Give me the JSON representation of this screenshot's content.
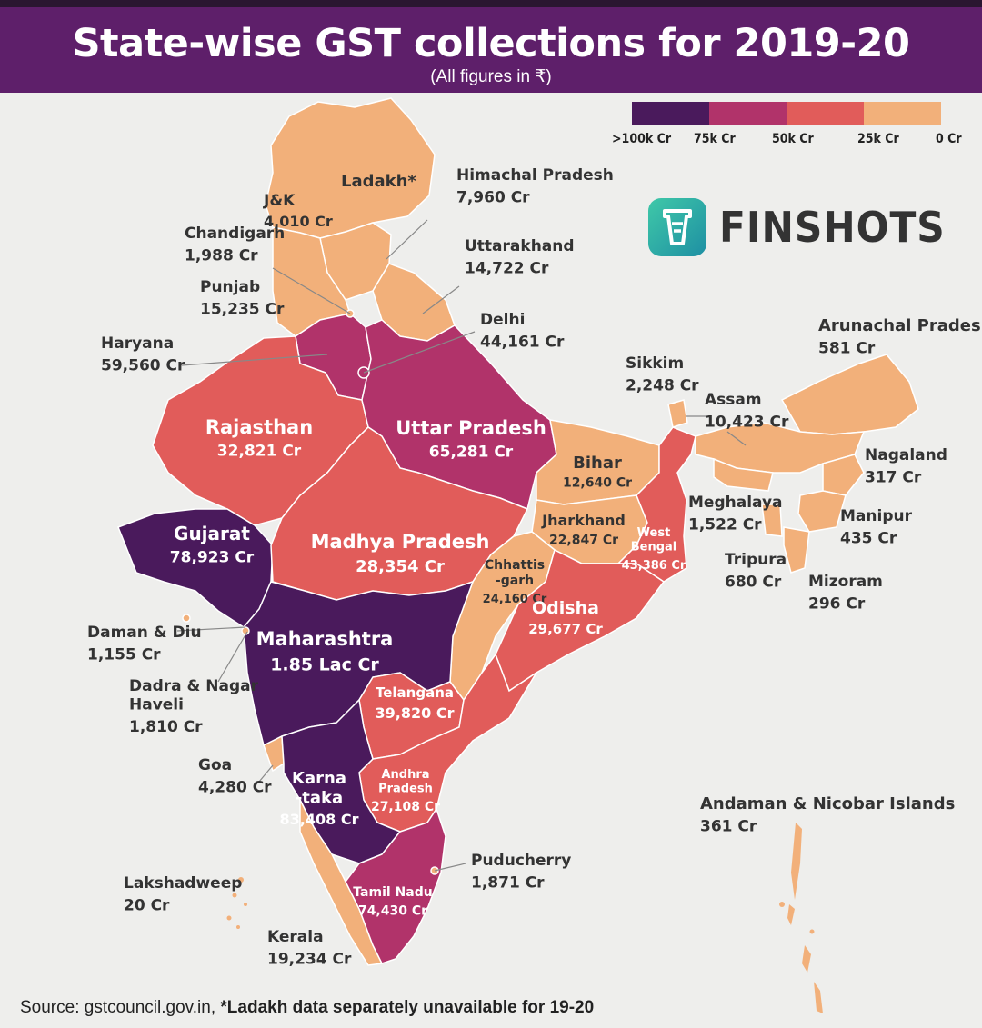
{
  "header": {
    "title": "State-wise GST collections for 2019-20",
    "subtitle": "(All figures in ₹)"
  },
  "legend": {
    "colors": [
      "#4a1a5c",
      "#b1336a",
      "#e15c5a",
      "#f2b07a"
    ],
    "labels": [
      ">100k Cr",
      "75k Cr",
      "50k Cr",
      "25k Cr",
      "0 Cr"
    ]
  },
  "brand": {
    "name": "FINSHOTS",
    "icon": "finshots-logo-icon"
  },
  "footer": {
    "source": "Source: gstcouncil.gov.in,",
    "note": "*Ladakh data separately unavailable for 19-20"
  },
  "regions": [
    {
      "name": "Ladakh*",
      "value": ""
    },
    {
      "name": "J&K",
      "value": "4,010 Cr"
    },
    {
      "name": "Himachal Pradesh",
      "value": "7,960 Cr"
    },
    {
      "name": "Chandigarh",
      "value": "1,988 Cr"
    },
    {
      "name": "Uttarakhand",
      "value": "14,722 Cr"
    },
    {
      "name": "Punjab",
      "value": "15,235 Cr"
    },
    {
      "name": "Delhi",
      "value": "44,161 Cr"
    },
    {
      "name": "Haryana",
      "value": "59,560 Cr"
    },
    {
      "name": "Rajasthan",
      "value": "32,821 Cr"
    },
    {
      "name": "Uttar Pradesh",
      "value": "65,281 Cr"
    },
    {
      "name": "Gujarat",
      "value": "78,923 Cr"
    },
    {
      "name": "Madhya Pradesh",
      "value": "28,354 Cr"
    },
    {
      "name": "Bihar",
      "value": "12,640 Cr"
    },
    {
      "name": "Jharkhand",
      "value": "22,847 Cr"
    },
    {
      "name": "West Bengal",
      "value": "43,386 Cr"
    },
    {
      "name": "Chhattis -garh",
      "value": "24,160 Cr"
    },
    {
      "name": "Odisha",
      "value": "29,677 Cr"
    },
    {
      "name": "Maharashtra",
      "value": "1.85 Lac Cr"
    },
    {
      "name": "Daman & Diu",
      "value": "1,155 Cr"
    },
    {
      "name": "Dadra & Nagar Haveli",
      "value": "1,810 Cr"
    },
    {
      "name": "Telangana",
      "value": "39,820 Cr"
    },
    {
      "name": "Goa",
      "value": "4,280 Cr"
    },
    {
      "name": "Karna -taka",
      "value": "83,408 Cr"
    },
    {
      "name": "Andhra Pradesh",
      "value": "27,108 Cr"
    },
    {
      "name": "Puducherry",
      "value": "1,871 Cr"
    },
    {
      "name": "Tamil Nadu",
      "value": "74,430 Cr"
    },
    {
      "name": "Lakshadweep",
      "value": "20 Cr"
    },
    {
      "name": "Kerala",
      "value": "19,234 Cr"
    },
    {
      "name": "Sikkim",
      "value": "2,248 Cr"
    },
    {
      "name": "Assam",
      "value": "10,423 Cr"
    },
    {
      "name": "Arunachal Pradesh",
      "value": "581 Cr"
    },
    {
      "name": "Nagaland",
      "value": "317 Cr"
    },
    {
      "name": "Meghalaya",
      "value": "1,522 Cr"
    },
    {
      "name": "Manipur",
      "value": "435 Cr"
    },
    {
      "name": "Tripura",
      "value": "680 Cr"
    },
    {
      "name": "Mizoram",
      "value": "296 Cr"
    },
    {
      "name": "Andaman & Nicobar Islands",
      "value": "361 Cr"
    }
  ]
}
